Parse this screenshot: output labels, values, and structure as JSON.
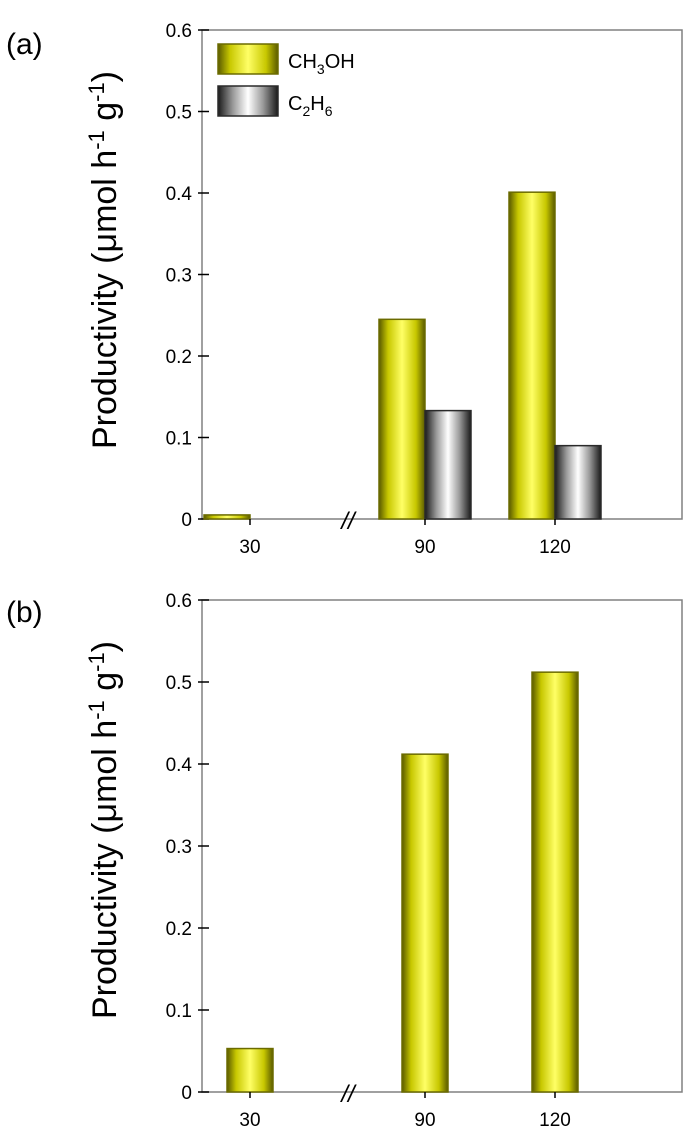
{
  "chart_data": [
    {
      "type": "bar",
      "panel_label": "(a)",
      "categories": [
        "30",
        "90",
        "120"
      ],
      "series": [
        {
          "name": "CH3OH",
          "values": [
            0.005,
            0.245,
            0.401
          ]
        },
        {
          "name": "C2H6",
          "values": [
            0.0,
            0.133,
            0.09
          ]
        }
      ],
      "legend": {
        "placement": "top-left",
        "entries": [
          {
            "base": "CH",
            "sub": "3",
            "rest": "OH"
          },
          {
            "base": "C",
            "sub": "2",
            "base2": "H",
            "sub2": "6"
          }
        ]
      },
      "ylabel": {
        "text": "Productivity (μmol h",
        "sup1": "-1",
        "mid": " g",
        "sup2": "-1",
        "end": ")"
      },
      "xlabel": "",
      "ylim": [
        0,
        0.6
      ],
      "yticks": [
        "0",
        "0.1",
        "0.2",
        "0.3",
        "0.4",
        "0.5",
        "0.6"
      ],
      "axis_break": "//",
      "grid": false
    },
    {
      "type": "bar",
      "panel_label": "(b)",
      "categories": [
        "30",
        "90",
        "120"
      ],
      "series": [
        {
          "name": "",
          "values": [
            0.053,
            0.412,
            0.512
          ]
        }
      ],
      "ylabel": {
        "text": "Productivity (μmol h",
        "sup1": "-1",
        "mid": " g",
        "sup2": "-1",
        "end": ")"
      },
      "xlabel": "",
      "ylim": [
        0,
        0.6
      ],
      "yticks": [
        "0",
        "0.1",
        "0.2",
        "0.3",
        "0.4",
        "0.5",
        "0.6"
      ],
      "axis_break": "//",
      "grid": false
    }
  ],
  "colors": {
    "bar_yellow_edge": "#6b6b00",
    "bar_yellow_light": "#ffff66",
    "bar_gray_edge": "#2a2a2a",
    "bar_gray_light": "#ffffff",
    "axis": "#808080"
  }
}
